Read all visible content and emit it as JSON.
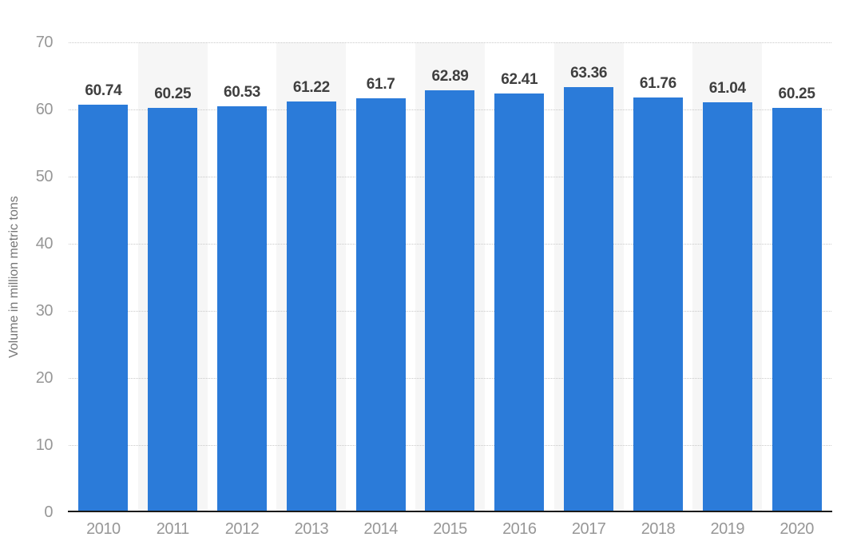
{
  "colors": {
    "background": "#ffffff",
    "bar": "#2b7bd9",
    "band": "#f6f6f6",
    "grid": "#c9c9c9",
    "axis_line": "#1a1a1a",
    "tick_text": "#979797",
    "value_label_text": "#3f3f3f",
    "axis_title_text": "#757575"
  },
  "chart_data": {
    "type": "bar",
    "title": "",
    "categories": [
      "2010",
      "2011",
      "2012",
      "2013",
      "2014",
      "2015",
      "2016",
      "2017",
      "2018",
      "2019",
      "2020"
    ],
    "values": [
      60.74,
      60.25,
      60.53,
      61.22,
      61.7,
      62.89,
      62.41,
      63.36,
      61.76,
      61.04,
      60.25
    ],
    "value_labels": [
      "60.74",
      "60.25",
      "60.53",
      "61.22",
      "61.7",
      "62.89",
      "62.41",
      "63.36",
      "61.76",
      "61.04",
      "60.25"
    ],
    "xlabel": "",
    "ylabel": "Volume in million metric tons",
    "ylim": [
      0,
      70
    ],
    "yticks": [
      0,
      10,
      20,
      30,
      40,
      50,
      60,
      70
    ],
    "grid": "horizontal dotted gridlines at every y tick",
    "legend": "none",
    "background_bands": "alternating light-gray vertical bands behind odd columns (2011, 2013, 2015, 2017, 2019)"
  }
}
